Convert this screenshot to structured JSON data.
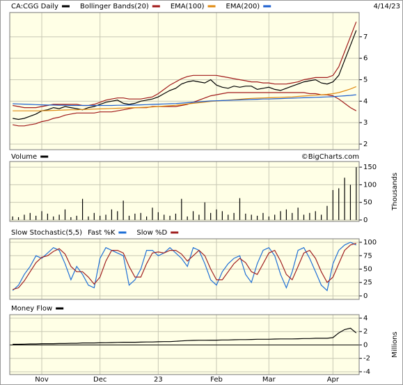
{
  "chart_data": [
    {
      "type": "line",
      "annotation": "4/14/23",
      "ylim": [
        1.74,
        8.13
      ],
      "yticks": [
        2,
        3,
        4,
        5,
        6,
        7
      ],
      "grid": true,
      "series": [
        {
          "name": "CA:CGG Daily",
          "color": "#000000",
          "values": [
            3.2,
            3.15,
            3.2,
            3.3,
            3.4,
            3.55,
            3.6,
            3.7,
            3.65,
            3.75,
            3.7,
            3.65,
            3.6,
            3.7,
            3.75,
            3.85,
            3.95,
            4.0,
            4.05,
            3.9,
            3.85,
            3.9,
            4.0,
            4.05,
            4.1,
            4.2,
            4.35,
            4.5,
            4.6,
            4.8,
            4.9,
            4.95,
            4.9,
            4.85,
            5.0,
            4.75,
            4.65,
            4.6,
            4.7,
            4.65,
            4.7,
            4.7,
            4.55,
            4.6,
            4.65,
            4.55,
            4.5,
            4.6,
            4.7,
            4.8,
            4.9,
            4.95,
            5.0,
            4.85,
            4.8,
            4.9,
            5.2,
            5.9,
            6.6,
            7.3
          ]
        },
        {
          "name": "Bollinger Bands(20)",
          "color": "#a01818",
          "upper": [
            3.8,
            3.75,
            3.7,
            3.7,
            3.7,
            3.75,
            3.8,
            3.85,
            3.85,
            3.85,
            3.85,
            3.85,
            3.8,
            3.8,
            3.85,
            3.95,
            4.05,
            4.1,
            4.15,
            4.15,
            4.1,
            4.1,
            4.1,
            4.15,
            4.2,
            4.35,
            4.55,
            4.75,
            4.9,
            5.05,
            5.15,
            5.2,
            5.2,
            5.2,
            5.2,
            5.2,
            5.15,
            5.1,
            5.05,
            5.0,
            4.95,
            4.9,
            4.9,
            4.85,
            4.85,
            4.8,
            4.8,
            4.8,
            4.85,
            4.9,
            5.0,
            5.05,
            5.1,
            5.1,
            5.1,
            5.2,
            5.6,
            6.3,
            7.0,
            7.7
          ],
          "lower": [
            2.9,
            2.85,
            2.85,
            2.9,
            2.95,
            3.05,
            3.1,
            3.2,
            3.25,
            3.35,
            3.4,
            3.45,
            3.45,
            3.45,
            3.45,
            3.5,
            3.5,
            3.5,
            3.55,
            3.6,
            3.65,
            3.7,
            3.7,
            3.7,
            3.75,
            3.75,
            3.75,
            3.75,
            3.75,
            3.8,
            3.85,
            3.95,
            4.05,
            4.15,
            4.25,
            4.3,
            4.35,
            4.4,
            4.4,
            4.4,
            4.4,
            4.4,
            4.4,
            4.4,
            4.4,
            4.4,
            4.4,
            4.4,
            4.4,
            4.4,
            4.4,
            4.35,
            4.35,
            4.3,
            4.3,
            4.25,
            4.1,
            3.9,
            3.7,
            3.55
          ]
        },
        {
          "name": "EMA(100)",
          "color": "#e08a10",
          "values": [
            3.55,
            3.55,
            3.55,
            3.55,
            3.55,
            3.55,
            3.56,
            3.57,
            3.58,
            3.59,
            3.6,
            3.6,
            3.61,
            3.62,
            3.63,
            3.64,
            3.65,
            3.66,
            3.67,
            3.68,
            3.69,
            3.7,
            3.71,
            3.72,
            3.73,
            3.75,
            3.77,
            3.79,
            3.81,
            3.84,
            3.87,
            3.9,
            3.93,
            3.96,
            3.99,
            4.01,
            4.03,
            4.05,
            4.07,
            4.09,
            4.11,
            4.13,
            4.14,
            4.15,
            4.16,
            4.17,
            4.18,
            4.19,
            4.2,
            4.22,
            4.24,
            4.26,
            4.28,
            4.3,
            4.32,
            4.35,
            4.4,
            4.48,
            4.57,
            4.68
          ]
        },
        {
          "name": "EMA(200)",
          "color": "#1c5fcf",
          "values": [
            3.88,
            3.87,
            3.86,
            3.85,
            3.84,
            3.83,
            3.82,
            3.82,
            3.81,
            3.81,
            3.8,
            3.8,
            3.8,
            3.8,
            3.8,
            3.8,
            3.8,
            3.8,
            3.81,
            3.81,
            3.82,
            3.82,
            3.83,
            3.84,
            3.85,
            3.86,
            3.87,
            3.88,
            3.89,
            3.91,
            3.93,
            3.95,
            3.97,
            3.99,
            4.01,
            4.02,
            4.03,
            4.04,
            4.05,
            4.06,
            4.07,
            4.08,
            4.09,
            4.1,
            4.1,
            4.11,
            4.12,
            4.13,
            4.14,
            4.15,
            4.16,
            4.17,
            4.18,
            4.19,
            4.2,
            4.21,
            4.23,
            4.25,
            4.27,
            4.3
          ]
        }
      ]
    },
    {
      "type": "bar",
      "annotation": "©BigCharts.com",
      "y_label": "Thousands",
      "ylim": [
        -4,
        166
      ],
      "yticks": [
        0,
        50,
        100,
        150
      ],
      "grid": true,
      "series": [
        {
          "name": "Volume",
          "color": "#000000",
          "values": [
            10,
            8,
            15,
            20,
            12,
            25,
            18,
            10,
            15,
            30,
            8,
            12,
            60,
            10,
            20,
            12,
            15,
            30,
            25,
            55,
            12,
            18,
            20,
            10,
            35,
            22,
            15,
            12,
            18,
            60,
            10,
            25,
            15,
            50,
            20,
            30,
            25,
            15,
            20,
            62,
            18,
            15,
            12,
            20,
            10,
            15,
            25,
            30,
            20,
            35,
            15,
            20,
            25,
            15,
            40,
            85,
            90,
            120,
            100,
            150
          ]
        }
      ]
    },
    {
      "type": "line",
      "title": "Slow Stochastic(5,5)",
      "ylim": [
        -6.5,
        106.5
      ],
      "yticks": [
        0,
        25,
        50,
        75,
        100
      ],
      "grid": true,
      "series": [
        {
          "name": "Fast %K",
          "color": "#1e6fd6",
          "values": [
            10,
            20,
            40,
            55,
            75,
            70,
            80,
            90,
            85,
            60,
            30,
            55,
            40,
            20,
            15,
            70,
            90,
            85,
            80,
            75,
            20,
            30,
            50,
            85,
            85,
            75,
            80,
            90,
            80,
            70,
            55,
            90,
            85,
            60,
            30,
            20,
            45,
            60,
            70,
            75,
            40,
            25,
            60,
            85,
            90,
            75,
            40,
            15,
            45,
            85,
            90,
            70,
            45,
            20,
            10,
            60,
            85,
            95,
            100,
            95
          ]
        },
        {
          "name": "Slow %D",
          "color": "#a02020",
          "values": [
            12,
            15,
            28,
            45,
            62,
            72,
            75,
            83,
            88,
            78,
            55,
            45,
            45,
            35,
            22,
            35,
            65,
            85,
            85,
            80,
            55,
            35,
            35,
            60,
            80,
            82,
            80,
            85,
            85,
            78,
            65,
            75,
            85,
            75,
            50,
            30,
            30,
            45,
            60,
            70,
            62,
            45,
            40,
            60,
            80,
            85,
            65,
            40,
            30,
            55,
            80,
            85,
            70,
            45,
            25,
            35,
            60,
            85,
            95,
            98
          ]
        }
      ]
    },
    {
      "type": "line",
      "y_label": "Millions",
      "ylim": [
        -4.42,
        4.52
      ],
      "yticks": [
        -4,
        -2,
        0,
        2,
        4
      ],
      "grid": true,
      "categories": [
        null,
        null,
        null,
        null,
        null,
        "Nov",
        null,
        null,
        null,
        null,
        null,
        null,
        null,
        null,
        null,
        "Dec",
        null,
        null,
        null,
        null,
        null,
        null,
        null,
        null,
        null,
        "23",
        null,
        null,
        null,
        null,
        null,
        null,
        null,
        null,
        null,
        "Feb",
        null,
        null,
        null,
        null,
        null,
        null,
        null,
        null,
        "Mar",
        null,
        null,
        null,
        null,
        null,
        null,
        null,
        null,
        null,
        null,
        "Apr",
        null,
        null,
        null,
        null
      ],
      "series": [
        {
          "name": "Money Flow",
          "color": "#000000",
          "values": [
            0.1,
            0.1,
            0.12,
            0.15,
            0.15,
            0.2,
            0.2,
            0.2,
            0.22,
            0.22,
            0.25,
            0.25,
            0.3,
            0.3,
            0.3,
            0.32,
            0.33,
            0.35,
            0.38,
            0.4,
            0.4,
            0.4,
            0.42,
            0.45,
            0.45,
            0.48,
            0.5,
            0.5,
            0.55,
            0.6,
            0.65,
            0.68,
            0.7,
            0.7,
            0.72,
            0.72,
            0.75,
            0.75,
            0.78,
            0.8,
            0.8,
            0.82,
            0.85,
            0.85,
            0.85,
            0.88,
            0.9,
            0.9,
            0.9,
            0.92,
            0.95,
            0.95,
            1.0,
            1.0,
            1.0,
            1.1,
            1.8,
            2.3,
            2.5,
            1.8
          ]
        }
      ]
    }
  ]
}
